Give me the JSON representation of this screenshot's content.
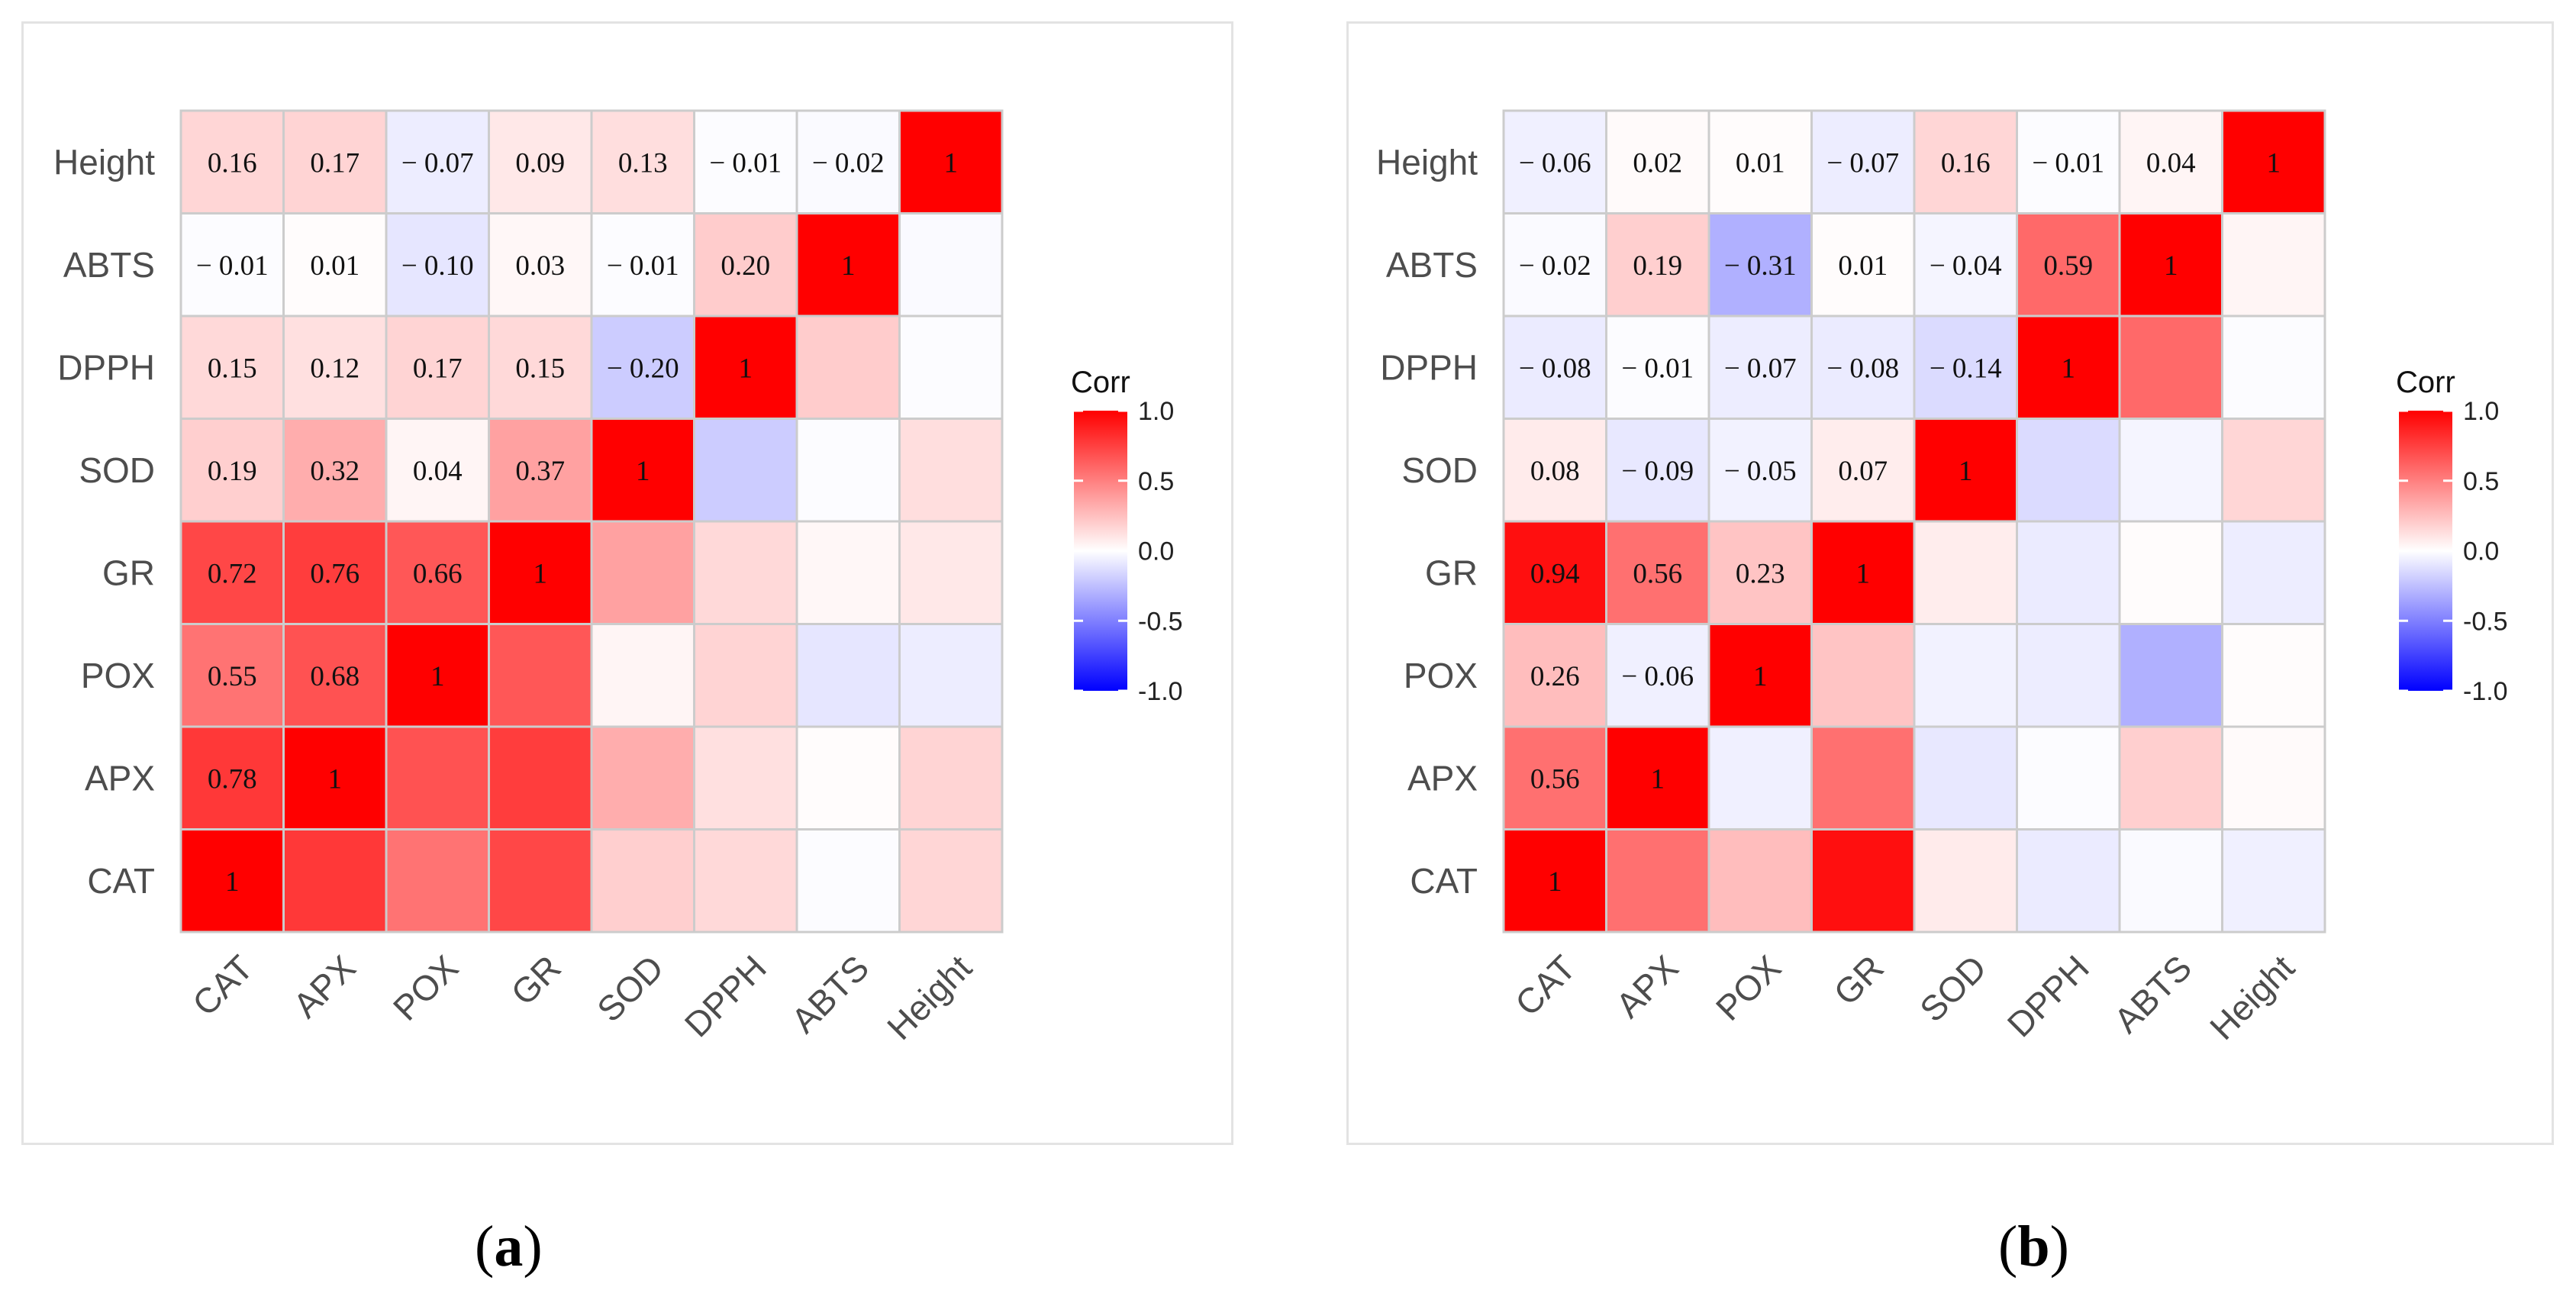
{
  "chart_data": [
    {
      "type": "heatmap",
      "panel_label": "a",
      "variables": [
        "CAT",
        "APX",
        "POX",
        "GR",
        "SOD",
        "DPPH",
        "ABTS",
        "Height"
      ],
      "x_tick_labels": [
        "CAT",
        "APX",
        "POX",
        "GR",
        "SOD",
        "DPPH",
        "ABTS",
        "Height"
      ],
      "y_tick_labels_top_to_bottom": [
        "Height",
        "ABTS",
        "DPPH",
        "SOD",
        "GR",
        "POX",
        "APX",
        "CAT"
      ],
      "matrix": [
        [
          1,
          0.78,
          0.55,
          0.72,
          0.19,
          0.15,
          -0.01,
          0.16
        ],
        [
          0.78,
          1,
          0.68,
          0.76,
          0.32,
          0.12,
          0.01,
          0.17
        ],
        [
          0.55,
          0.68,
          1,
          0.66,
          0.04,
          0.17,
          -0.1,
          -0.07
        ],
        [
          0.72,
          0.76,
          0.66,
          1,
          0.37,
          0.15,
          0.03,
          0.09
        ],
        [
          0.19,
          0.32,
          0.04,
          0.37,
          1,
          -0.2,
          -0.01,
          0.13
        ],
        [
          0.15,
          0.12,
          0.17,
          0.15,
          -0.2,
          1,
          0.2,
          -0.01
        ],
        [
          -0.01,
          0.01,
          -0.1,
          0.03,
          -0.01,
          0.2,
          1,
          -0.02
        ],
        [
          0.16,
          0.17,
          -0.07,
          0.09,
          0.13,
          -0.01,
          -0.02,
          1
        ]
      ],
      "labels": [
        [
          "1",
          "",
          "",
          "",
          "",
          "",
          "",
          ""
        ],
        [
          "0.78",
          "1",
          "",
          "",
          "",
          "",
          "",
          ""
        ],
        [
          "0.55",
          "0.68",
          "1",
          "",
          "",
          "",
          "",
          ""
        ],
        [
          "0.72",
          "0.76",
          "0.66",
          "1",
          "",
          "",
          "",
          ""
        ],
        [
          "0.19",
          "0.32",
          "0.04",
          "0.37",
          "1",
          "",
          "",
          ""
        ],
        [
          "0.15",
          "0.12",
          "0.17",
          "0.15",
          "− 0.20",
          "1",
          "",
          ""
        ],
        [
          "− 0.01",
          "0.01",
          "− 0.10",
          "0.03",
          "− 0.01",
          "0.20",
          "1",
          ""
        ],
        [
          "0.16",
          "0.17",
          "− 0.07",
          "0.09",
          "0.13",
          "− 0.01",
          "− 0.02",
          "1"
        ]
      ],
      "legend": {
        "title": "Corr",
        "ticks": [
          "1.0",
          "0.5",
          "0.0",
          "-0.5",
          "-1.0"
        ],
        "range": [
          -1,
          1
        ],
        "placement": "right"
      }
    },
    {
      "type": "heatmap",
      "panel_label": "b",
      "variables": [
        "CAT",
        "APX",
        "POX",
        "GR",
        "SOD",
        "DPPH",
        "ABTS",
        "Height"
      ],
      "x_tick_labels": [
        "CAT",
        "APX",
        "POX",
        "GR",
        "SOD",
        "DPPH",
        "ABTS",
        "Height"
      ],
      "y_tick_labels_top_to_bottom": [
        "Height",
        "ABTS",
        "DPPH",
        "SOD",
        "GR",
        "POX",
        "APX",
        "CAT"
      ],
      "matrix": [
        [
          1,
          0.56,
          0.26,
          0.94,
          0.08,
          -0.08,
          -0.02,
          -0.06
        ],
        [
          0.56,
          1,
          -0.06,
          0.56,
          -0.09,
          -0.01,
          0.19,
          0.02
        ],
        [
          0.26,
          -0.06,
          1,
          0.23,
          -0.05,
          -0.07,
          -0.31,
          0.01
        ],
        [
          0.94,
          0.56,
          0.23,
          1,
          0.07,
          -0.08,
          0.01,
          -0.07
        ],
        [
          0.08,
          -0.09,
          -0.05,
          0.07,
          1,
          -0.14,
          -0.04,
          0.16
        ],
        [
          -0.08,
          -0.01,
          -0.07,
          -0.08,
          -0.14,
          1,
          0.59,
          -0.01
        ],
        [
          -0.02,
          0.19,
          -0.31,
          0.01,
          -0.04,
          0.59,
          1,
          0.04
        ],
        [
          -0.06,
          0.02,
          0.01,
          -0.07,
          0.16,
          -0.01,
          0.04,
          1
        ]
      ],
      "labels": [
        [
          "1",
          "",
          "",
          "",
          "",
          "",
          "",
          ""
        ],
        [
          "0.56",
          "1",
          "",
          "",
          "",
          "",
          "",
          ""
        ],
        [
          "0.26",
          "− 0.06",
          "1",
          "",
          "",
          "",
          "",
          ""
        ],
        [
          "0.94",
          "0.56",
          "0.23",
          "1",
          "",
          "",
          "",
          ""
        ],
        [
          "0.08",
          "− 0.09",
          "− 0.05",
          "0.07",
          "1",
          "",
          "",
          ""
        ],
        [
          "− 0.08",
          "− 0.01",
          "− 0.07",
          "− 0.08",
          "− 0.14",
          "1",
          "",
          ""
        ],
        [
          "− 0.02",
          "0.19",
          "− 0.31",
          "0.01",
          "− 0.04",
          "0.59",
          "1",
          ""
        ],
        [
          "− 0.06",
          "0.02",
          "0.01",
          "− 0.07",
          "0.16",
          "− 0.01",
          "0.04",
          "1"
        ]
      ],
      "legend": {
        "title": "Corr",
        "ticks": [
          "1.0",
          "0.5",
          "0.0",
          "-0.5",
          "-1.0"
        ],
        "range": [
          -1,
          1
        ],
        "placement": "right"
      }
    }
  ],
  "captions": {
    "a": "a",
    "b": "b"
  },
  "colors": {
    "positive": "#ff0000",
    "neutral": "#ffffff",
    "negative": "#0000ff",
    "grid": "#cccccc",
    "frame": "#e3e3e3"
  }
}
